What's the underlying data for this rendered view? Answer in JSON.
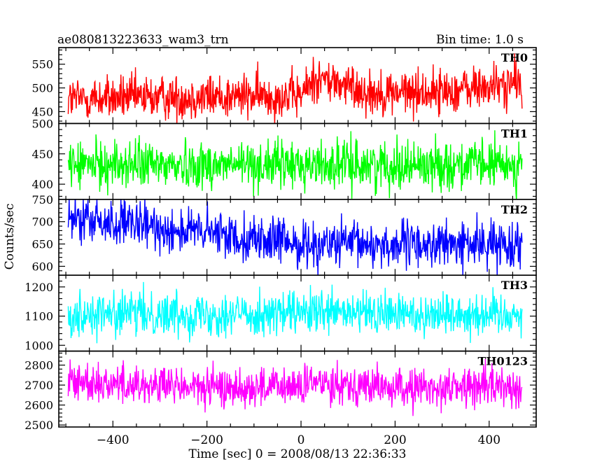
{
  "header": {
    "title": "ae080813223633_wam3_trn",
    "bin_time": "Bin time: 1.0 s"
  },
  "chart_data": {
    "type": "line",
    "ylabel": "Counts/sec",
    "xlabel": "Time [sec] 0 = 2008/08/13 22:36:33",
    "xlim": [
      -515,
      500
    ],
    "x_ticks": [
      -400,
      -200,
      0,
      200,
      400
    ],
    "x_tick_labels": [
      "−400",
      "−200",
      "0",
      "200",
      "400"
    ],
    "x_range": [
      -495,
      470
    ],
    "bin_time": 1.0,
    "grid": false,
    "panels": [
      {
        "name": "TH0",
        "color": "#ff0000",
        "ylim": [
          425,
          585
        ],
        "y_ticks": [
          450,
          500,
          550
        ],
        "trend": [
          [
            -495,
            477
          ],
          [
            0,
            484
          ],
          [
            30,
            522
          ],
          [
            150,
            490
          ],
          [
            300,
            492
          ],
          [
            470,
            510
          ]
        ],
        "noise": 24
      },
      {
        "name": "TH1",
        "color": "#00ff00",
        "ylim": [
          375,
          500
        ],
        "y_ticks": [
          400,
          450,
          500
        ],
        "trend": [
          [
            -495,
            432
          ],
          [
            470,
            432
          ]
        ],
        "noise": 20
      },
      {
        "name": "TH2",
        "color": "#0000ff",
        "ylim": [
          580,
          750
        ],
        "y_ticks": [
          600,
          650,
          700,
          750
        ],
        "trend": [
          [
            -495,
            705
          ],
          [
            -200,
            675
          ],
          [
            0,
            650
          ],
          [
            200,
            648
          ],
          [
            470,
            650
          ]
        ],
        "noise": 26
      },
      {
        "name": "TH3",
        "color": "#00ffff",
        "ylim": [
          980,
          1240
        ],
        "y_ticks": [
          1000,
          1100,
          1200
        ],
        "trend": [
          [
            -495,
            1108
          ],
          [
            470,
            1108
          ]
        ],
        "noise": 38
      },
      {
        "name": "TH0123",
        "color": "#ff00ff",
        "ylim": [
          2490,
          2870
        ],
        "y_ticks": [
          2500,
          2600,
          2700,
          2800
        ],
        "trend": [
          [
            -495,
            2720
          ],
          [
            -200,
            2685
          ],
          [
            0,
            2690
          ],
          [
            50,
            2720
          ],
          [
            200,
            2680
          ],
          [
            470,
            2700
          ]
        ],
        "noise": 50
      }
    ]
  }
}
